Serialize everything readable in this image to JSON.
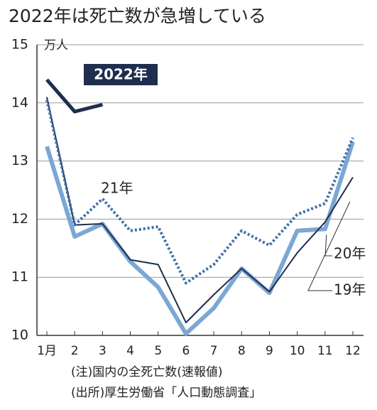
{
  "chart_data": {
    "type": "line",
    "title": "2022年は死亡数が急増している",
    "y_unit": "万人",
    "categories": [
      "1月",
      "2",
      "3",
      "4",
      "5",
      "6",
      "7",
      "8",
      "9",
      "10",
      "11",
      "12"
    ],
    "ylim": [
      10,
      15
    ],
    "yticks": [
      10,
      11,
      12,
      13,
      14,
      15
    ],
    "grid": true,
    "series": [
      {
        "name": "2022年",
        "color": "#1f2d4e",
        "line_style": "solid",
        "values": [
          14.4,
          13.85,
          13.97,
          null,
          null,
          null,
          null,
          null,
          null,
          null,
          null,
          null
        ]
      },
      {
        "name": "21年",
        "color": "#3f6fa8",
        "line_style": "dotted",
        "values": [
          14.05,
          11.9,
          12.35,
          11.8,
          11.87,
          10.9,
          11.22,
          11.8,
          11.55,
          12.08,
          12.27,
          13.4
        ]
      },
      {
        "name": "20年",
        "color": "#7ba7d4",
        "line_style": "solid",
        "values": [
          13.25,
          11.7,
          11.92,
          11.27,
          10.83,
          10.03,
          10.47,
          11.15,
          10.73,
          11.8,
          11.83,
          13.33
        ]
      },
      {
        "name": "19年",
        "color": "#1f2d4e",
        "line_style": "solid",
        "values": [
          14.1,
          11.9,
          11.92,
          11.3,
          11.22,
          10.22,
          10.7,
          11.15,
          10.75,
          11.42,
          11.95,
          12.72
        ]
      }
    ],
    "notes": [
      "(注)国内の全死亡数(速報値)",
      "(出所)厚生労働省「人口動態調査」"
    ]
  }
}
